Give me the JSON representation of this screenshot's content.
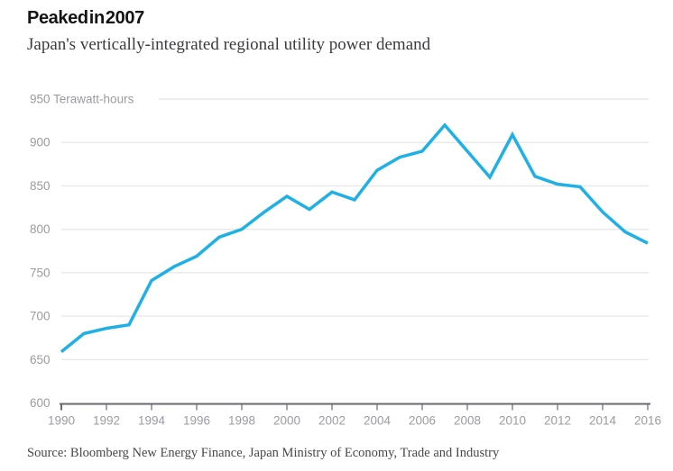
{
  "header": {
    "title": "Peaked in 2007",
    "subtitle": "Japan's vertically-integrated regional utility power demand"
  },
  "footer": {
    "source": "Source: Bloomberg New Energy Finance, Japan Ministry of Economy, Trade and Industry"
  },
  "colors": {
    "line": "#1fb0e6",
    "grid": "#e8e8ea",
    "axis": "#68696d",
    "tick_label": "#9b9ba2",
    "title": "#141414",
    "subtitle": "#3b3a40",
    "source": "#48484a",
    "background": "#ffffff"
  },
  "chart_data": {
    "type": "line",
    "title": "Peaked in 2007",
    "subtitle": "Japan's vertically-integrated regional utility power demand",
    "unit_label": "Terawatt-hours",
    "xlabel": "",
    "ylabel": "Terawatt-hours",
    "x": [
      1990,
      1991,
      1992,
      1993,
      1994,
      1995,
      1996,
      1997,
      1998,
      1999,
      2000,
      2001,
      2002,
      2003,
      2004,
      2005,
      2006,
      2007,
      2008,
      2009,
      2010,
      2011,
      2012,
      2013,
      2014,
      2015,
      2016
    ],
    "series": [
      {
        "name": "Japan regional utility power demand",
        "values": [
          659,
          680,
          686,
          690,
          741,
          757,
          769,
          791,
          800,
          820,
          838,
          823,
          843,
          834,
          868,
          883,
          890,
          920,
          890,
          860,
          909,
          861,
          852,
          849,
          820,
          797,
          784
        ]
      }
    ],
    "xlim": [
      1990,
      2016
    ],
    "ylim": [
      600,
      950
    ],
    "y_ticks": [
      600,
      650,
      700,
      750,
      800,
      850,
      900,
      950
    ],
    "x_ticks": [
      1990,
      1992,
      1994,
      1996,
      1998,
      2000,
      2002,
      2004,
      2006,
      2008,
      2010,
      2012,
      2014,
      2016
    ],
    "grid": "horizontal",
    "legend": "none",
    "annotations": [],
    "source": "Source: Bloomberg New Energy Finance, Japan Ministry of Economy, Trade and Industry"
  }
}
